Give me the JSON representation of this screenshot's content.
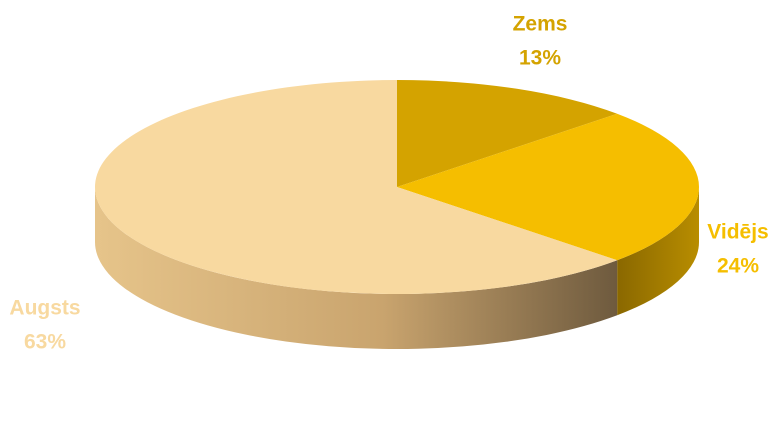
{
  "chart_data": {
    "type": "pie",
    "categories": [
      "Zems",
      "Vidējs",
      "Augsts"
    ],
    "values": [
      13,
      24,
      63
    ],
    "value_labels": [
      "13%",
      "24%",
      "63%"
    ],
    "colors": [
      "#d4a300",
      "#f5be00",
      "#f8d9a0"
    ]
  }
}
